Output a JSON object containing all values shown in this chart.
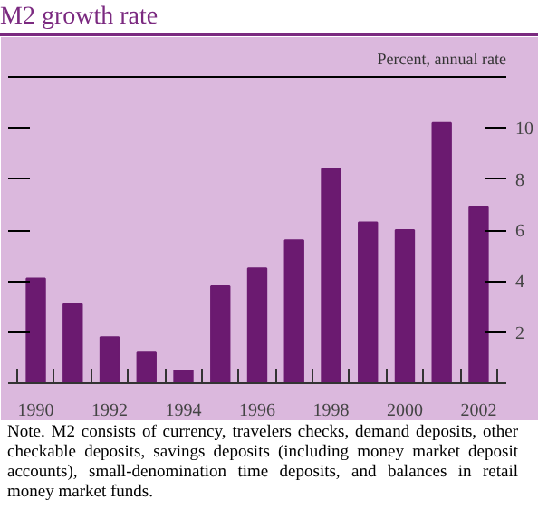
{
  "chart_data": {
    "type": "bar",
    "title": "M2 growth rate",
    "ylabel": "Percent, annual rate",
    "categories": [
      "1990",
      null,
      "1992",
      null,
      "1994",
      null,
      "1996",
      null,
      "1998",
      null,
      "2000",
      null,
      "2002"
    ],
    "values": [
      4.1,
      3.1,
      1.8,
      1.2,
      0.5,
      3.8,
      4.5,
      5.6,
      8.4,
      6.3,
      6.0,
      10.2,
      6.9
    ],
    "color": "#6b1a70",
    "ylim": [
      0,
      12
    ],
    "yticks": [
      2,
      4,
      6,
      8,
      10
    ],
    "grid": false,
    "annotations": [
      "Note. M2 consists of currency, travelers checks, demand deposits, other checkable deposits, savings deposits (including money market deposit accounts), small-denomination time deposits, and balances in retail money market funds."
    ]
  }
}
